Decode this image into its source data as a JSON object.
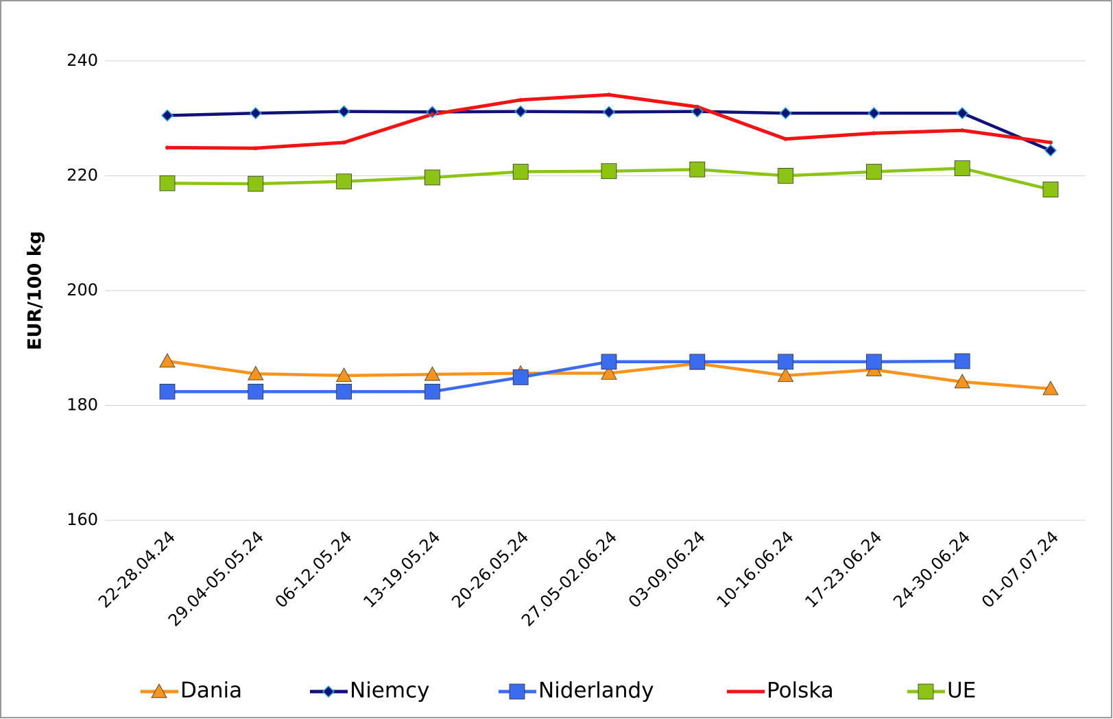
{
  "chart_data": {
    "type": "line",
    "y_label": "EUR/100 kg",
    "categories": [
      "22-28.04.24",
      "29.04-05.05.24",
      "06-12.05.24",
      "13-19.05.24",
      "20-26.05.24",
      "27.05-02.06.24",
      "03-09.06.24",
      "10-16.06.24",
      "17-23.06.24",
      "24-30.06.24",
      "01-07.07.24"
    ],
    "series": [
      {
        "name": "Dania",
        "color": "#f7941d",
        "marker": "triangle",
        "values": [
          187.7,
          185.5,
          185.2,
          185.4,
          185.6,
          185.6,
          187.3,
          185.2,
          186.2,
          184.1,
          182.9
        ]
      },
      {
        "name": "Niemcy",
        "color": "#10127a",
        "marker": "diamond",
        "values": [
          230.5,
          230.9,
          231.2,
          231.1,
          231.2,
          231.1,
          231.2,
          230.9,
          230.9,
          230.9,
          224.4
        ]
      },
      {
        "name": "Niderlandy",
        "color": "#3b6cf0",
        "marker": "square",
        "values": [
          182.4,
          182.4,
          182.4,
          182.4,
          184.9,
          187.6,
          187.6,
          187.6,
          187.6,
          187.7,
          null
        ]
      },
      {
        "name": "Polska",
        "color": "#f21414",
        "marker": "none",
        "values": [
          224.9,
          224.8,
          225.8,
          230.7,
          233.2,
          234.1,
          232.0,
          226.4,
          227.4,
          227.9,
          225.8
        ]
      },
      {
        "name": "UE",
        "color": "#8cc414",
        "marker": "square",
        "values": [
          218.7,
          218.6,
          219.0,
          219.7,
          220.7,
          220.8,
          221.1,
          220.0,
          220.7,
          221.3,
          217.6
        ]
      }
    ],
    "ylim": [
      160,
      245
    ],
    "yticks": [
      160,
      180,
      200,
      220,
      240
    ],
    "grid": true,
    "legend": "bottom"
  }
}
